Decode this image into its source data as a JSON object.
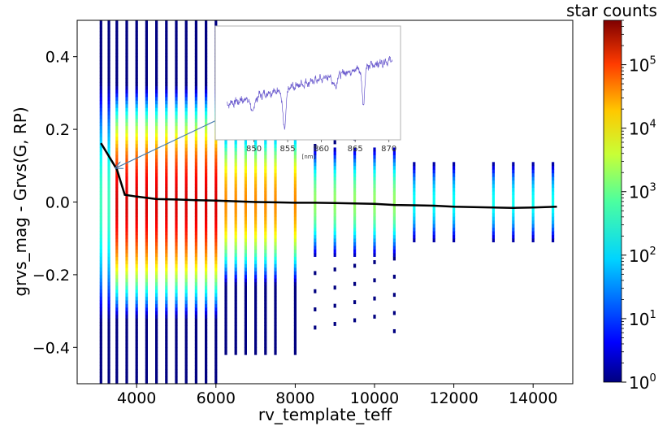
{
  "chart_data": {
    "type": "heatmap",
    "title": "",
    "xlabel": "rv_template_teff",
    "ylabel": "grvs_mag - Grvs(G, RP)",
    "xlim": [
      2500,
      15000
    ],
    "ylim": [
      -0.5,
      0.5
    ],
    "x_ticks": [
      4000,
      6000,
      8000,
      10000,
      12000,
      14000
    ],
    "x_tick_labels": [
      "4000",
      "6000",
      "8000",
      "10000",
      "12000",
      "14000"
    ],
    "y_ticks": [
      0.4,
      0.2,
      0.0,
      -0.2,
      -0.4
    ],
    "y_tick_labels": [
      "0.4",
      "0.2",
      "0.0",
      "−0.2",
      "−0.4"
    ],
    "colorbar": {
      "label": "star counts",
      "scale": "log",
      "range": [
        1,
        500000
      ],
      "tick_base": "10",
      "tick_exponents": [
        "0",
        "1",
        "2",
        "3",
        "4",
        "5"
      ],
      "colormap": "jet"
    },
    "template_teff_columns": [
      3100,
      3300,
      3500,
      3750,
      4000,
      4250,
      4500,
      4750,
      5000,
      5250,
      5500,
      5750,
      6000,
      6250,
      6500,
      6750,
      7000,
      7250,
      7500,
      8000,
      8500,
      9000,
      9500,
      10000,
      10500,
      11000,
      11500,
      12000,
      13000,
      13500,
      14000,
      14500
    ],
    "median_line": {
      "x": [
        3100,
        3500,
        3700,
        4000,
        4500,
        5000,
        5500,
        6000,
        6500,
        7000,
        7500,
        8000,
        8500,
        9000,
        9500,
        10000,
        10500,
        11000,
        11500,
        12000,
        12500,
        13000,
        13500,
        14000,
        14600
      ],
      "y": [
        0.162,
        0.09,
        0.02,
        0.015,
        0.008,
        0.007,
        0.005,
        0.004,
        0.002,
        0.0,
        -0.001,
        -0.002,
        -0.002,
        -0.003,
        -0.004,
        -0.005,
        -0.008,
        -0.009,
        -0.01,
        -0.013,
        -0.014,
        -0.015,
        -0.016,
        -0.015,
        -0.013
      ]
    },
    "inset": {
      "description": "example RVS spectrum",
      "xlim": [
        845,
        871
      ],
      "x_ticks": [
        850,
        855,
        860,
        865,
        870
      ],
      "x_tick_labels": [
        "850",
        "855",
        "860",
        "865",
        "870"
      ],
      "xunit": "[nm]",
      "arrow_to": {
        "x": 3500,
        "y": 0.095
      }
    },
    "colors": {
      "median_line": "#000000",
      "spectrum": "#6a5acd",
      "arrow": "#4a7fb0"
    }
  }
}
